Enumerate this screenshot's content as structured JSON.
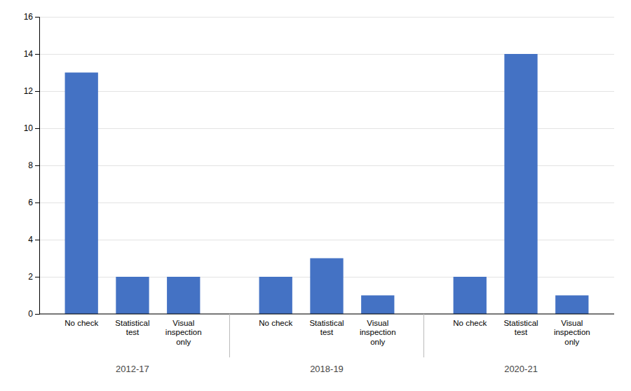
{
  "chart_data": {
    "type": "bar",
    "categories": [
      "No check",
      "Statistical\ntest",
      "Visual\ninspection\nonly"
    ],
    "series": [
      {
        "name": "2012-17",
        "values": [
          13,
          2,
          2
        ]
      },
      {
        "name": "2018-19",
        "values": [
          2,
          3,
          1
        ]
      },
      {
        "name": "2020-21",
        "values": [
          2,
          14,
          1
        ]
      }
    ],
    "color": "#4472C4",
    "ylim": [
      0,
      16
    ],
    "yticks": [
      0,
      2,
      4,
      6,
      8,
      10,
      12,
      14,
      16
    ],
    "grid": true
  }
}
